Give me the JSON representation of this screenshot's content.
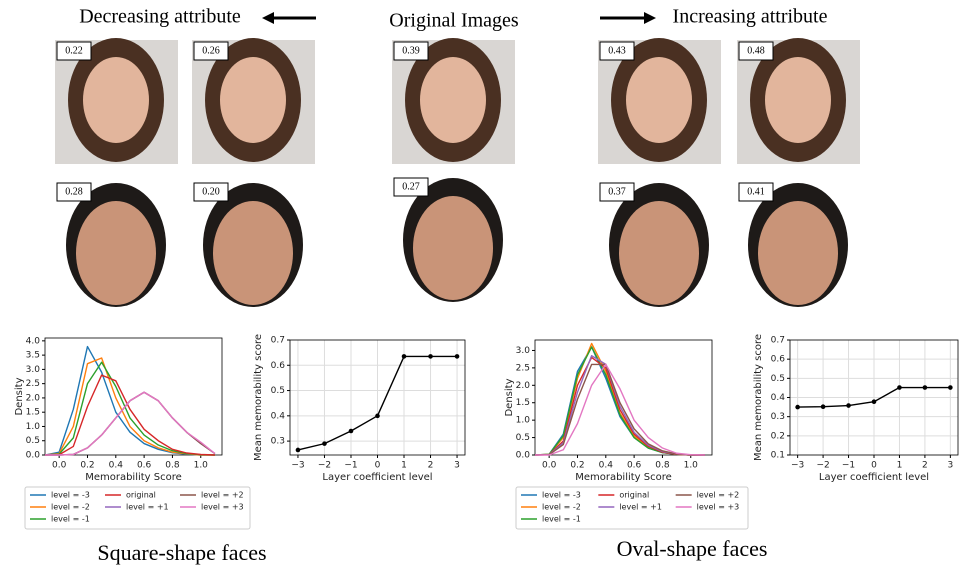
{
  "headers": {
    "decreasing": "Decreasing attribute",
    "original": "Original Images",
    "increasing": "Increasing attribute"
  },
  "faces": {
    "woman_scores": [
      "0.22",
      "0.26",
      "0.39",
      "0.43",
      "0.48"
    ],
    "man_scores": [
      "0.28",
      "0.20",
      "0.27",
      "0.37",
      "0.41"
    ]
  },
  "captions": [
    "Square-shape faces",
    "Oval-shape faces"
  ],
  "chart_data": [
    {
      "type": "line",
      "xlabel": "Memorability Score",
      "ylabel": "Density",
      "x": [
        -0.1,
        0,
        0.1,
        0.2,
        0.3,
        0.4,
        0.5,
        0.6,
        0.7,
        0.8,
        0.9,
        1.0,
        1.1
      ],
      "series": [
        {
          "name": "level = -3",
          "color": "#1f77b4",
          "values": [
            0,
            0.1,
            1.6,
            3.8,
            2.9,
            1.5,
            0.8,
            0.4,
            0.2,
            0.08,
            0.03,
            0,
            0
          ]
        },
        {
          "name": "level = -2",
          "color": "#ff7f0e",
          "values": [
            0,
            0.05,
            1.0,
            3.2,
            3.4,
            2.0,
            1.0,
            0.5,
            0.25,
            0.1,
            0.04,
            0,
            0
          ]
        },
        {
          "name": "level = -1",
          "color": "#2ca02c",
          "values": [
            0,
            0.03,
            0.6,
            2.5,
            3.25,
            2.4,
            1.3,
            0.7,
            0.35,
            0.15,
            0.05,
            0.01,
            0
          ]
        },
        {
          "name": "original",
          "color": "#d62728",
          "values": [
            0,
            0.01,
            0.3,
            1.7,
            2.8,
            2.6,
            1.6,
            0.9,
            0.5,
            0.2,
            0.07,
            0.02,
            0
          ]
        },
        {
          "name": "level = +1",
          "color": "#9467bd",
          "values": [
            0,
            0,
            0.02,
            0.25,
            0.7,
            1.3,
            1.9,
            2.2,
            1.9,
            1.3,
            0.8,
            0.4,
            0.05
          ]
        },
        {
          "name": "level = +2",
          "color": "#8c564b",
          "values": [
            0,
            0,
            0.02,
            0.25,
            0.7,
            1.3,
            1.9,
            2.2,
            1.9,
            1.3,
            0.8,
            0.4,
            0.05
          ]
        },
        {
          "name": "level = +3",
          "color": "#e377c2",
          "values": [
            0,
            0,
            0.02,
            0.25,
            0.7,
            1.3,
            1.9,
            2.2,
            1.9,
            1.3,
            0.8,
            0.45,
            0.05
          ]
        }
      ],
      "xlim": [
        -0.1,
        1.15
      ],
      "ylim": [
        0,
        4.1
      ],
      "xticks": [
        {
          "value": 0,
          "label": "0.0"
        },
        0.2,
        0.4,
        0.6,
        0.8,
        {
          "value": 1,
          "label": "1.0"
        }
      ],
      "yticks": [
        {
          "value": 0,
          "label": "0.0"
        },
        0.5,
        {
          "value": 1,
          "label": "1.0"
        },
        1.5,
        {
          "value": 2,
          "label": "2.0"
        },
        2.5,
        {
          "value": 3,
          "label": "3.0"
        },
        3.5,
        {
          "value": 4,
          "label": "4.0"
        }
      ],
      "grid": false,
      "markers": false,
      "legend": "below"
    },
    {
      "type": "line",
      "xlabel": "Layer coefficient level",
      "ylabel": "Mean memorability score",
      "x": [
        -3,
        -2,
        -1,
        0,
        1,
        2,
        3
      ],
      "values": [
        0.265,
        0.29,
        0.34,
        0.4,
        0.635,
        0.635,
        0.635
      ],
      "color": "#000000",
      "xlim": [
        -3.3,
        3.3
      ],
      "ylim": [
        0.245,
        0.7
      ],
      "xticks": [
        {
          "value": -3,
          "label": "−3"
        },
        {
          "value": -2,
          "label": "−2"
        },
        {
          "value": -1,
          "label": "−1"
        },
        0,
        1,
        2,
        3
      ],
      "yticks": [
        0.3,
        0.4,
        0.5,
        0.6,
        0.7
      ],
      "grid": true,
      "markers": true
    },
    {
      "type": "line",
      "xlabel": "Memorability Score",
      "ylabel": "Density",
      "x": [
        -0.1,
        0,
        0.1,
        0.2,
        0.3,
        0.4,
        0.5,
        0.6,
        0.7,
        0.8,
        0.9,
        1.0,
        1.1
      ],
      "series": [
        {
          "name": "level = -3",
          "color": "#1f77b4",
          "values": [
            0,
            0.02,
            0.6,
            2.4,
            3.1,
            2.2,
            1.1,
            0.5,
            0.2,
            0.07,
            0.02,
            0,
            0
          ]
        },
        {
          "name": "level = -2",
          "color": "#ff7f0e",
          "values": [
            0,
            0.02,
            0.5,
            2.2,
            3.2,
            2.4,
            1.2,
            0.55,
            0.22,
            0.08,
            0.02,
            0,
            0
          ]
        },
        {
          "name": "level = -1",
          "color": "#2ca02c",
          "values": [
            0,
            0.02,
            0.55,
            2.3,
            3.1,
            2.3,
            1.15,
            0.5,
            0.2,
            0.07,
            0.02,
            0,
            0
          ]
        },
        {
          "name": "original",
          "color": "#d62728",
          "values": [
            0,
            0.01,
            0.4,
            2.0,
            2.8,
            2.5,
            1.3,
            0.6,
            0.25,
            0.08,
            0.02,
            0,
            0
          ]
        },
        {
          "name": "level = +1",
          "color": "#9467bd",
          "values": [
            0,
            0.01,
            0.35,
            1.8,
            2.85,
            2.6,
            1.4,
            0.65,
            0.28,
            0.1,
            0.03,
            0,
            0
          ]
        },
        {
          "name": "level = +2",
          "color": "#8c564b",
          "values": [
            0,
            0.01,
            0.3,
            1.6,
            2.6,
            2.6,
            1.5,
            0.75,
            0.32,
            0.12,
            0.03,
            0,
            0
          ]
        },
        {
          "name": "level = +3",
          "color": "#e377c2",
          "values": [
            0,
            0,
            0.15,
            0.9,
            2.0,
            2.6,
            1.9,
            1.0,
            0.5,
            0.2,
            0.05,
            0.01,
            0
          ]
        }
      ],
      "xlim": [
        -0.1,
        1.15
      ],
      "ylim": [
        0,
        3.3
      ],
      "xticks": [
        {
          "value": 0,
          "label": "0.0"
        },
        0.2,
        0.4,
        0.6,
        0.8,
        {
          "value": 1,
          "label": "1.0"
        }
      ],
      "yticks": [
        {
          "value": 0,
          "label": "0.0"
        },
        0.5,
        {
          "value": 1,
          "label": "1.0"
        },
        1.5,
        {
          "value": 2,
          "label": "2.0"
        },
        2.5,
        {
          "value": 3,
          "label": "3.0"
        }
      ],
      "grid": false,
      "markers": false,
      "legend": "below"
    },
    {
      "type": "line",
      "xlabel": "Layer coefficient level",
      "ylabel": "Mean memorability score",
      "x": [
        -3,
        -2,
        -1,
        0,
        1,
        2,
        3
      ],
      "values": [
        0.35,
        0.352,
        0.358,
        0.378,
        0.452,
        0.452,
        0.452
      ],
      "color": "#000000",
      "xlim": [
        -3.3,
        3.3
      ],
      "ylim": [
        0.1,
        0.7
      ],
      "xticks": [
        {
          "value": -3,
          "label": "−3"
        },
        {
          "value": -2,
          "label": "−2"
        },
        {
          "value": -1,
          "label": "−1"
        },
        0,
        1,
        2,
        3
      ],
      "yticks": [
        0.1,
        0.2,
        0.3,
        0.4,
        0.5,
        0.6,
        0.7
      ],
      "grid": true,
      "markers": true
    }
  ]
}
